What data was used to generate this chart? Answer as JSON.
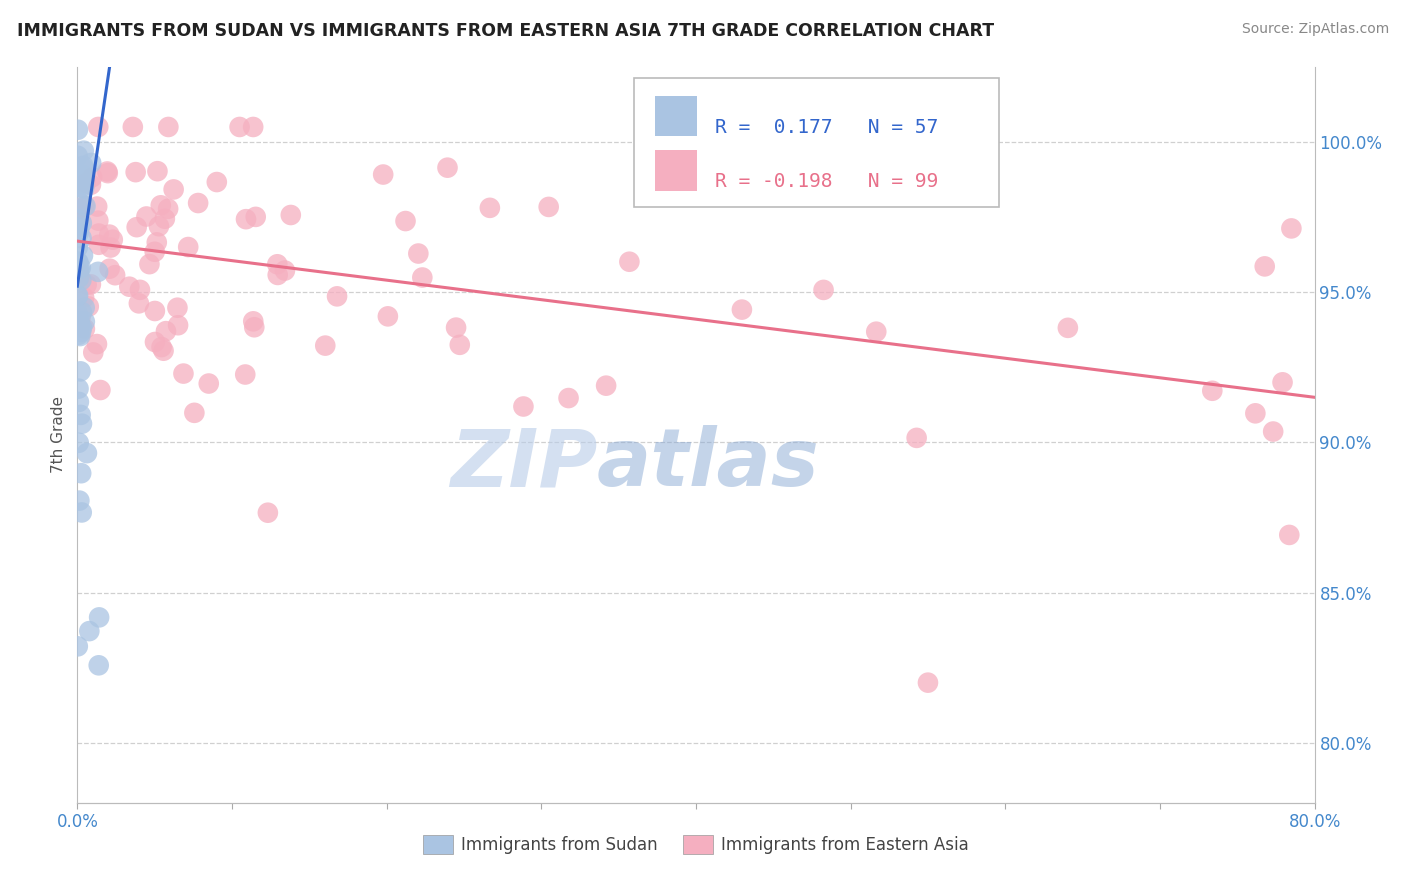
{
  "title": "IMMIGRANTS FROM SUDAN VS IMMIGRANTS FROM EASTERN ASIA 7TH GRADE CORRELATION CHART",
  "source": "Source: ZipAtlas.com",
  "ylabel": "7th Grade",
  "right_yticks": [
    "100.0%",
    "95.0%",
    "90.0%",
    "85.0%",
    "80.0%"
  ],
  "right_ytick_vals": [
    1.0,
    0.95,
    0.9,
    0.85,
    0.8
  ],
  "legend_blue_r": "0.177",
  "legend_blue_n": "57",
  "legend_pink_r": "-0.198",
  "legend_pink_n": "99",
  "blue_color": "#aac4e2",
  "pink_color": "#f5afc0",
  "blue_line_color": "#3366cc",
  "pink_line_color": "#e8708a",
  "watermark": "ZIPAtlas",
  "watermark_color": "#ccd8ee",
  "background_color": "#ffffff",
  "xlim": [
    0.0,
    0.8
  ],
  "ylim": [
    0.78,
    1.025
  ],
  "grid_color": "#d0d0d0",
  "title_color": "#222222",
  "source_color": "#888888",
  "bottom_label_color": "#444444",
  "right_tick_color": "#4488cc"
}
